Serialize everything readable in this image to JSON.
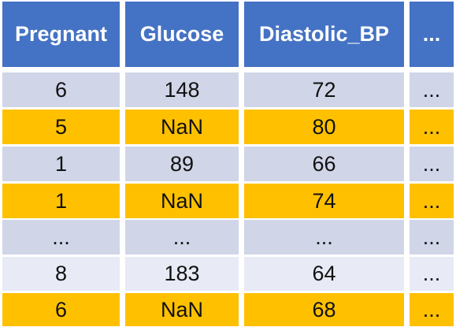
{
  "table": {
    "headers": [
      "Pregnant",
      "Glucose",
      "Diastolic_BP",
      "..."
    ],
    "rows": [
      [
        "6",
        "148",
        "72",
        "..."
      ],
      [
        "5",
        "NaN",
        "80",
        "..."
      ],
      [
        "1",
        "89",
        "66",
        "..."
      ],
      [
        "1",
        "NaN",
        "74",
        "..."
      ],
      [
        "...",
        "...",
        "...",
        "..."
      ],
      [
        "8",
        "183",
        "64",
        "..."
      ],
      [
        "6",
        "NaN",
        "68",
        "..."
      ]
    ]
  },
  "colors": {
    "header_bg": "#4472c4",
    "header_text": "#ffffff",
    "row_light": "#d0d5e8",
    "row_lighter": "#e8ebf5",
    "row_highlight_nan": "#ffc000"
  }
}
